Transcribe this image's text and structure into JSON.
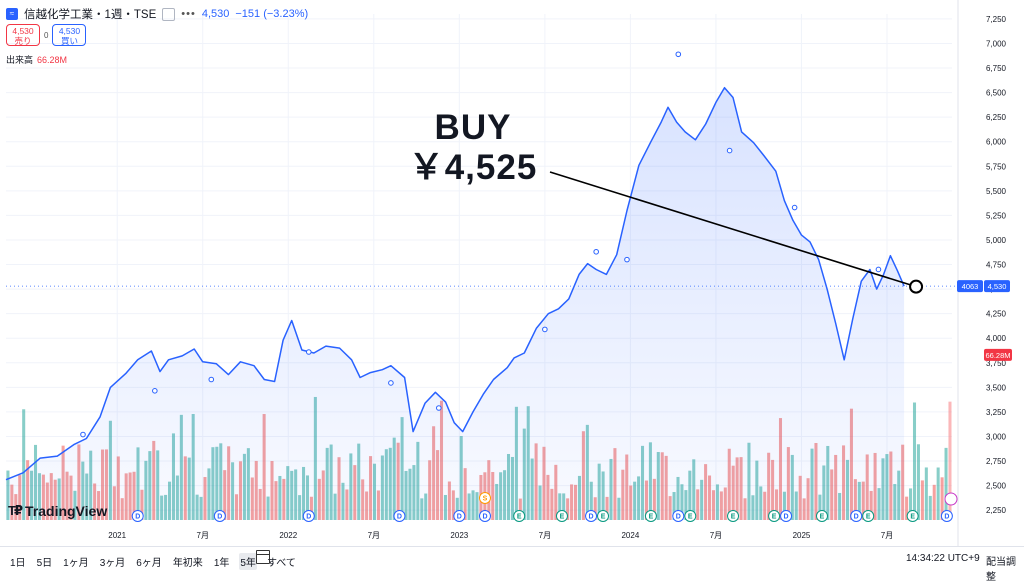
{
  "header": {
    "icon": "company-logo-icon",
    "title": "信越化学工業・1週・TSE",
    "quote": "4,530",
    "change": "−151 (−3.23%)"
  },
  "trade": {
    "sell_price": "4,530",
    "sell_label": "売り",
    "spread": "0",
    "buy_price": "4,530",
    "buy_label": "買い"
  },
  "volume": {
    "label": "出来高",
    "value": "66.28M"
  },
  "annotation": {
    "line1": "BUY",
    "line2": "￥4,525"
  },
  "logo_text": "TradingView",
  "range_buttons": [
    "1日",
    "5日",
    "1ヶ月",
    "3ヶ月",
    "6ヶ月",
    "年初来",
    "1年",
    "5年",
    "すべて"
  ],
  "selected_range": "5年",
  "clock": "14:34:22 UTC+9",
  "adjust_label": "配当調整",
  "colors": {
    "line": "#2962ff",
    "vol_up": "#26a69a",
    "vol_down": "#ef5350",
    "accent": "#2962ff"
  },
  "chart_data": {
    "type": "area",
    "x_ticks": [
      {
        "t": 2021.0,
        "label": "2021"
      },
      {
        "t": 2021.5,
        "label": "7月"
      },
      {
        "t": 2022.0,
        "label": "2022"
      },
      {
        "t": 2022.5,
        "label": "7月"
      },
      {
        "t": 2023.0,
        "label": "2023"
      },
      {
        "t": 2023.5,
        "label": "7月"
      },
      {
        "t": 2024.0,
        "label": "2024"
      },
      {
        "t": 2024.5,
        "label": "7月"
      },
      {
        "t": 2025.0,
        "label": "2025"
      },
      {
        "t": 2025.5,
        "label": "7月"
      }
    ],
    "y_ticks": [
      2250,
      2500,
      2750,
      3000,
      3250,
      3500,
      3750,
      4000,
      4250,
      4500,
      4750,
      5000,
      5250,
      5500,
      5750,
      6000,
      6250,
      6500,
      6750,
      7000,
      7250
    ],
    "ylim": [
      2150,
      7300
    ],
    "xlim": [
      2020.35,
      2025.88
    ],
    "price": [
      [
        2020.35,
        2560
      ],
      [
        2020.45,
        2630
      ],
      [
        2020.55,
        2780
      ],
      [
        2020.65,
        2800
      ],
      [
        2020.75,
        2920
      ],
      [
        2020.82,
        2980
      ],
      [
        2020.9,
        3200
      ],
      [
        2020.96,
        3500
      ],
      [
        2021.05,
        3640
      ],
      [
        2021.12,
        3780
      ],
      [
        2021.2,
        3870
      ],
      [
        2021.25,
        3660
      ],
      [
        2021.3,
        3780
      ],
      [
        2021.38,
        3820
      ],
      [
        2021.45,
        3890
      ],
      [
        2021.5,
        3760
      ],
      [
        2021.58,
        3740
      ],
      [
        2021.65,
        3630
      ],
      [
        2021.72,
        3760
      ],
      [
        2021.8,
        3720
      ],
      [
        2021.86,
        3580
      ],
      [
        2021.92,
        3560
      ],
      [
        2021.97,
        3980
      ],
      [
        2022.02,
        4180
      ],
      [
        2022.08,
        3880
      ],
      [
        2022.15,
        3850
      ],
      [
        2022.22,
        3920
      ],
      [
        2022.3,
        3900
      ],
      [
        2022.37,
        3780
      ],
      [
        2022.42,
        3600
      ],
      [
        2022.48,
        3650
      ],
      [
        2022.55,
        3680
      ],
      [
        2022.6,
        3720
      ],
      [
        2022.68,
        3600
      ],
      [
        2022.73,
        3050
      ],
      [
        2022.8,
        3340
      ],
      [
        2022.86,
        3450
      ],
      [
        2022.92,
        3350
      ],
      [
        2022.97,
        3140
      ],
      [
        2023.02,
        3050
      ],
      [
        2023.08,
        3250
      ],
      [
        2023.14,
        3430
      ],
      [
        2023.2,
        3580
      ],
      [
        2023.28,
        3700
      ],
      [
        2023.32,
        3800
      ],
      [
        2023.38,
        3850
      ],
      [
        2023.45,
        4100
      ],
      [
        2023.52,
        4250
      ],
      [
        2023.58,
        4300
      ],
      [
        2023.64,
        4400
      ],
      [
        2023.7,
        4650
      ],
      [
        2023.75,
        4760
      ],
      [
        2023.8,
        4700
      ],
      [
        2023.86,
        4650
      ],
      [
        2023.92,
        4850
      ],
      [
        2023.98,
        5300
      ],
      [
        2024.05,
        5760
      ],
      [
        2024.12,
        6000
      ],
      [
        2024.18,
        6200
      ],
      [
        2024.22,
        6350
      ],
      [
        2024.27,
        6200
      ],
      [
        2024.32,
        6100
      ],
      [
        2024.38,
        6020
      ],
      [
        2024.44,
        6180
      ],
      [
        2024.5,
        6400
      ],
      [
        2024.55,
        6550
      ],
      [
        2024.6,
        6450
      ],
      [
        2024.65,
        6100
      ],
      [
        2024.72,
        5990
      ],
      [
        2024.78,
        5860
      ],
      [
        2024.85,
        5700
      ],
      [
        2024.9,
        5400
      ],
      [
        2024.95,
        5200
      ],
      [
        2025.0,
        5050
      ],
      [
        2025.05,
        4980
      ],
      [
        2025.1,
        4800
      ],
      [
        2025.15,
        4500
      ],
      [
        2025.2,
        4150
      ],
      [
        2025.25,
        3780
      ],
      [
        2025.3,
        4200
      ],
      [
        2025.35,
        4580
      ],
      [
        2025.4,
        4700
      ],
      [
        2025.44,
        4500
      ],
      [
        2025.48,
        4650
      ],
      [
        2025.52,
        4840
      ],
      [
        2025.56,
        4690
      ],
      [
        2025.6,
        4530
      ]
    ],
    "marks": [
      {
        "t": 2020.8,
        "v": 3020
      },
      {
        "t": 2021.22,
        "v": 3465
      },
      {
        "t": 2021.55,
        "v": 3580
      },
      {
        "t": 2022.12,
        "v": 3860
      },
      {
        "t": 2022.6,
        "v": 3545
      },
      {
        "t": 2022.88,
        "v": 3290
      },
      {
        "t": 2023.5,
        "v": 4090
      },
      {
        "t": 2023.8,
        "v": 4880
      },
      {
        "t": 2023.98,
        "v": 4800
      },
      {
        "t": 2024.28,
        "v": 6890
      },
      {
        "t": 2024.58,
        "v": 5910
      },
      {
        "t": 2024.96,
        "v": 5330
      },
      {
        "t": 2025.45,
        "v": 4700
      }
    ],
    "buy_point": {
      "t": 2025.67,
      "v": 4525
    },
    "volume_scale_max": 70,
    "volume_weeks": 240,
    "event_badges": [
      {
        "t": 2021.12,
        "label": "D"
      },
      {
        "t": 2021.6,
        "label": "D"
      },
      {
        "t": 2022.12,
        "label": "D"
      },
      {
        "t": 2022.65,
        "label": "D"
      },
      {
        "t": 2023.0,
        "label": "D"
      },
      {
        "t": 2023.15,
        "label": "D"
      },
      {
        "t": 2023.15,
        "label": "S"
      },
      {
        "t": 2023.35,
        "label": "E"
      },
      {
        "t": 2023.6,
        "label": "E"
      },
      {
        "t": 2023.77,
        "label": "D"
      },
      {
        "t": 2023.84,
        "label": "E"
      },
      {
        "t": 2024.12,
        "label": "E"
      },
      {
        "t": 2024.28,
        "label": "D"
      },
      {
        "t": 2024.35,
        "label": "E"
      },
      {
        "t": 2024.6,
        "label": "E"
      },
      {
        "t": 2024.84,
        "label": "E"
      },
      {
        "t": 2024.91,
        "label": "D"
      },
      {
        "t": 2025.12,
        "label": "E"
      },
      {
        "t": 2025.32,
        "label": "D"
      },
      {
        "t": 2025.39,
        "label": "E"
      },
      {
        "t": 2025.65,
        "label": "E"
      },
      {
        "t": 2025.85,
        "label": "D"
      }
    ],
    "y_badges": [
      {
        "label": "4063",
        "v": 4530
      },
      {
        "label": "4,530",
        "v": 4530
      },
      {
        "label": "66.28M",
        "v": 3830
      }
    ]
  }
}
